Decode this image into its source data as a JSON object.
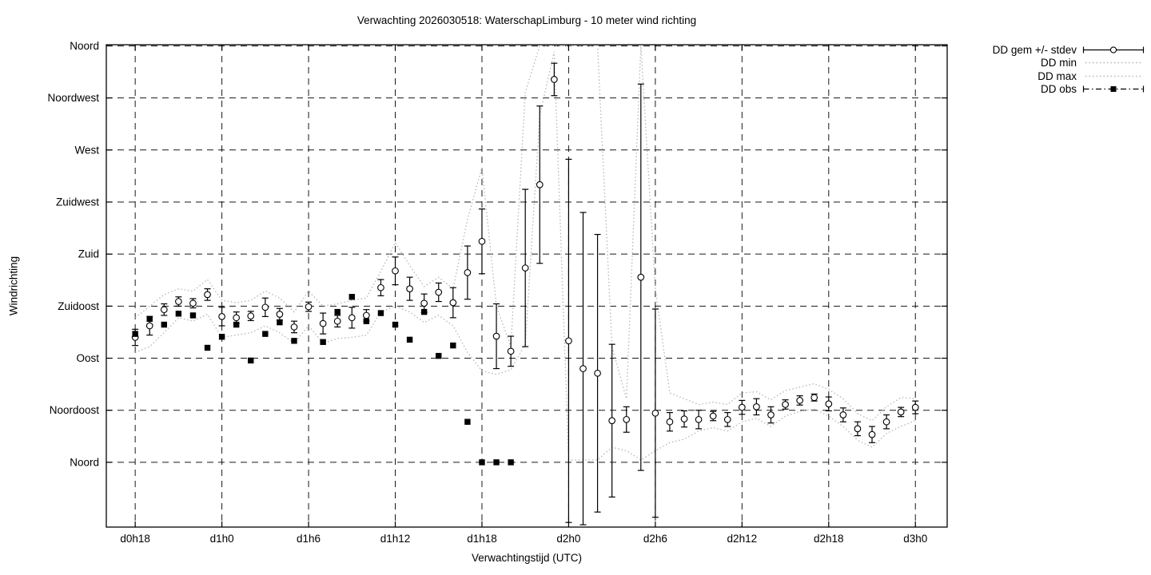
{
  "title": "Verwachting 2026030518: WaterschapLimburg - 10 meter wind richting",
  "legend": {
    "items": [
      {
        "label": "DD gem +/- stdev",
        "style": "errorbar-circle"
      },
      {
        "label": "DD min",
        "style": "dotted"
      },
      {
        "label": "DD max",
        "style": "dotted"
      },
      {
        "label": "DD obs",
        "style": "dashdot-filled-square"
      }
    ]
  },
  "colors": {
    "foreground": "#000000",
    "background": "#ffffff",
    "minmax_line": "#b5b5b5"
  },
  "chart_data": {
    "type": "line",
    "title": "Verwachting 2026030518: WaterschapLimburg - 10 meter wind richting",
    "xlabel": "Verwachtingstijd (UTC)",
    "ylabel": "Windrichting",
    "grid": true,
    "legend_position": "outside-top-right",
    "x_unit": "hours since d0h18, one sample per hour",
    "xlim": [
      -2,
      56.2
    ],
    "ylim": [
      -56,
      361
    ],
    "x_ticks": [
      {
        "label": "d0h18",
        "hour": 0
      },
      {
        "label": "d1h0",
        "hour": 6
      },
      {
        "label": "d1h6",
        "hour": 12
      },
      {
        "label": "d1h12",
        "hour": 18
      },
      {
        "label": "d1h18",
        "hour": 24
      },
      {
        "label": "d2h0",
        "hour": 30
      },
      {
        "label": "d2h6",
        "hour": 36
      },
      {
        "label": "d2h12",
        "hour": 42
      },
      {
        "label": "d2h18",
        "hour": 48
      },
      {
        "label": "d3h0",
        "hour": 54
      }
    ],
    "y_ticks": [
      {
        "label": "Noord",
        "deg": 360
      },
      {
        "label": "Noordwest",
        "deg": 315
      },
      {
        "label": "West",
        "deg": 270
      },
      {
        "label": "Zuidwest",
        "deg": 225
      },
      {
        "label": "Zuid",
        "deg": 180
      },
      {
        "label": "Zuidoost",
        "deg": 135
      },
      {
        "label": "Oost",
        "deg": 90
      },
      {
        "label": "Noordoost",
        "deg": 45
      },
      {
        "label": "Noord",
        "deg": 0
      }
    ],
    "series": {
      "dd_gem": {
        "name": "DD gem +/- stdev",
        "start_hour": 0,
        "step": 1,
        "mean": [
          108,
          118,
          132,
          139,
          137.5,
          145,
          126,
          125,
          126.5,
          134,
          128,
          117,
          134.5,
          120,
          122,
          125,
          127,
          151,
          165.5,
          150,
          137.5,
          147,
          138,
          164,
          191,
          109,
          96,
          168,
          240,
          331,
          105,
          81,
          77,
          36,
          37,
          160,
          42.5,
          35,
          37.5,
          37,
          40,
          37,
          47.5,
          48,
          41,
          50,
          53.5,
          56,
          50.5,
          41,
          29,
          24,
          35,
          43.5,
          47.5
        ],
        "stdev": [
          7,
          8,
          5,
          4,
          4,
          5,
          8,
          5,
          4,
          8,
          5,
          5,
          4,
          9,
          5,
          9,
          5,
          7,
          12,
          10,
          8,
          8,
          13,
          23,
          28,
          28,
          13,
          68,
          68,
          14,
          157,
          135,
          120,
          66,
          11,
          167,
          90,
          8,
          7,
          8,
          4,
          6,
          6,
          7,
          7,
          4,
          4,
          3,
          6,
          6,
          6,
          7,
          6,
          4,
          5.5
        ]
      },
      "dd_min": {
        "name": "DD min",
        "start_hour": 0,
        "step": 1,
        "values": [
          95,
          100,
          112,
          125,
          122,
          128,
          108,
          110,
          112,
          118,
          112,
          103,
          118,
          103,
          107,
          108,
          110,
          130,
          135,
          130,
          121,
          127,
          118,
          95,
          79,
          76,
          80,
          102,
          300,
          355,
          2,
          2,
          2,
          13,
          10,
          2,
          10,
          17,
          20,
          27,
          30,
          27,
          35,
          38,
          31,
          40,
          44,
          46,
          40,
          31,
          19,
          13,
          25,
          31,
          36
        ]
      },
      "dd_max": {
        "name": "DD max",
        "start_hour": 0,
        "step": 1,
        "values": [
          125,
          135,
          145,
          150,
          148,
          158,
          140,
          138,
          140,
          148,
          142,
          130,
          148,
          135,
          137,
          140,
          142,
          165,
          190,
          170,
          152,
          160,
          150,
          210,
          255,
          135,
          100,
          320,
          360,
          360,
          360,
          360,
          360,
          100,
          55,
          360,
          150,
          60,
          55,
          50,
          52,
          50,
          60,
          61,
          54,
          62,
          65,
          68,
          63,
          55,
          42,
          36,
          48,
          56,
          55
        ]
      },
      "dd_obs": {
        "name": "DD obs",
        "start_hour": 0,
        "step": 1,
        "values": [
          111,
          124,
          119,
          128.5,
          127,
          99,
          108.5,
          119,
          88,
          111,
          121,
          105,
          null,
          104,
          130,
          143,
          122,
          129,
          119,
          106,
          130,
          92,
          101,
          35,
          0,
          0,
          0
        ]
      }
    }
  }
}
